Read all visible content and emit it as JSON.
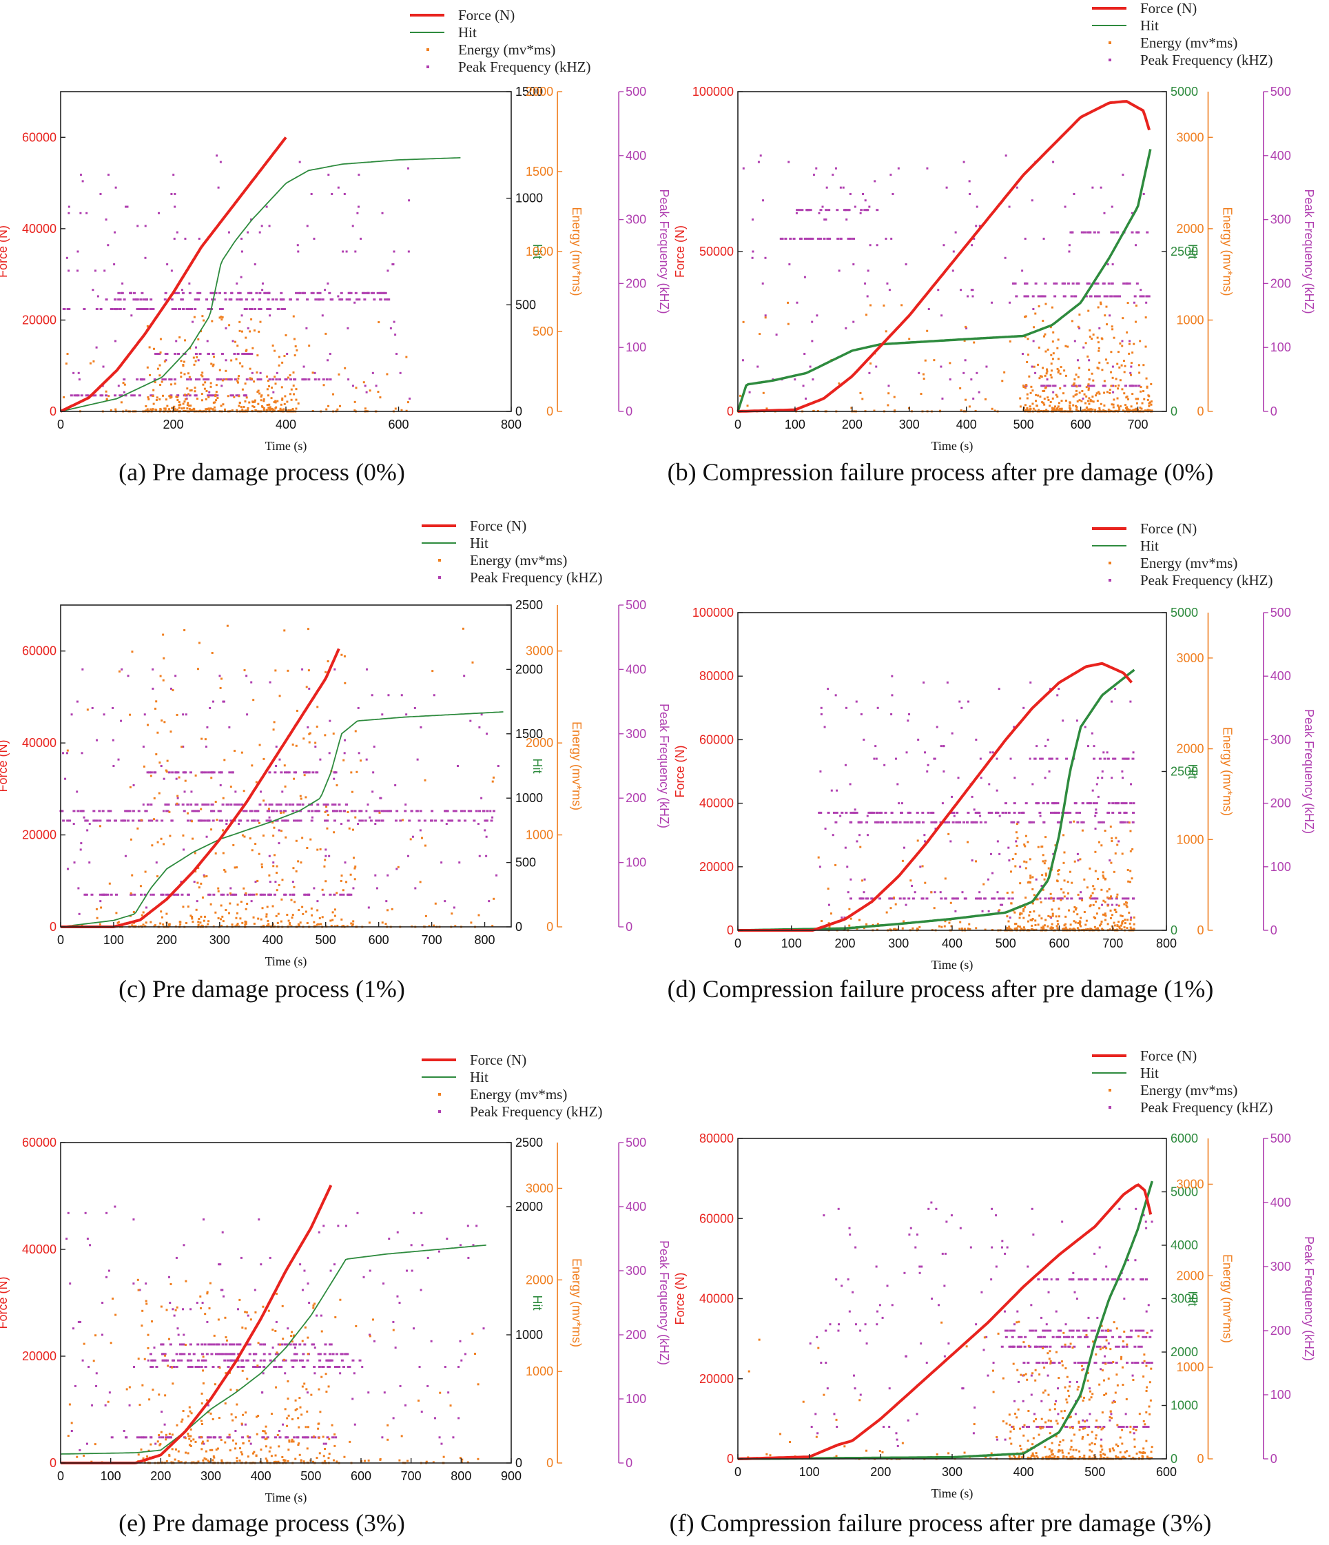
{
  "colors": {
    "force": "#e8231e",
    "hit": "#2e8b3e",
    "energy": "#f07f20",
    "peak": "#b03fb0",
    "axis": "#222222"
  },
  "legend": {
    "force": "Force (N)",
    "hit": "Hit",
    "energy": "Energy (mv*ms)",
    "peak": "Peak Frequency (kHZ)"
  },
  "axis_labels": {
    "time": "Time (s)",
    "force": "Force (N)",
    "hit": "Hit",
    "energy": "Energy (mv*ms)",
    "peak": "Peak Frequency (kHZ)"
  },
  "chart_data": [
    {
      "id": "a",
      "type": "line",
      "caption": "(a) Pre damage process (0%)",
      "xlim": [
        0,
        800
      ],
      "x_ticks": [
        0,
        200,
        400,
        600,
        800
      ],
      "force_lim": [
        0,
        70000
      ],
      "force_ticks": [
        0,
        20000,
        40000,
        60000
      ],
      "hit_lim": [
        0,
        1500
      ],
      "hit_ticks": [
        0,
        500,
        1000,
        1500
      ],
      "energy_lim": [
        0,
        2000
      ],
      "energy_ticks": [
        0,
        500,
        1000,
        1500,
        2000
      ],
      "peak_lim": [
        0,
        500
      ],
      "peak_ticks": [
        0,
        100,
        200,
        300,
        400,
        500
      ],
      "force_series": [
        [
          0,
          0
        ],
        [
          50,
          3000
        ],
        [
          100,
          9000
        ],
        [
          150,
          17000
        ],
        [
          200,
          26000
        ],
        [
          250,
          36000
        ],
        [
          300,
          44000
        ],
        [
          350,
          52000
        ],
        [
          400,
          60000
        ]
      ],
      "hit_series": [
        [
          0,
          0
        ],
        [
          100,
          60
        ],
        [
          180,
          160
        ],
        [
          230,
          300
        ],
        [
          265,
          450
        ],
        [
          285,
          700
        ],
        [
          310,
          800
        ],
        [
          340,
          900
        ],
        [
          400,
          1070
        ],
        [
          440,
          1130
        ],
        [
          500,
          1160
        ],
        [
          600,
          1180
        ],
        [
          710,
          1190
        ]
      ],
      "hit_thick": false,
      "energy_scatter": {
        "x_range": [
          0,
          620
        ],
        "dense_range": [
          150,
          420
        ],
        "max": 600,
        "count": 420
      },
      "peak_bands": [
        {
          "level": 25,
          "x_range": [
            0,
            330
          ]
        },
        {
          "level": 50,
          "x_range": [
            100,
            480
          ]
        },
        {
          "level": 90,
          "x_range": [
            150,
            340
          ]
        },
        {
          "level": 160,
          "x_range": [
            0,
            400
          ]
        },
        {
          "level": 175,
          "x_range": [
            80,
            600
          ]
        },
        {
          "level": 185,
          "x_range": [
            100,
            600
          ]
        }
      ],
      "peak_sparse": {
        "x_range": [
          0,
          620
        ],
        "count": 140
      }
    },
    {
      "id": "b",
      "type": "line",
      "caption": "(b) Compression failure process after pre damage (0%)",
      "xlim": [
        0,
        750
      ],
      "x_ticks": [
        0,
        100,
        200,
        300,
        400,
        500,
        600,
        700
      ],
      "force_lim": [
        0,
        100000
      ],
      "force_ticks": [
        0,
        50000,
        100000
      ],
      "hit_lim": [
        0,
        5000
      ],
      "hit_ticks": [
        0,
        2500,
        5000
      ],
      "energy_lim": [
        0,
        3500
      ],
      "energy_ticks": [
        0,
        1000,
        2000,
        3000
      ],
      "peak_lim": [
        0,
        500
      ],
      "peak_ticks": [
        0,
        100,
        200,
        300,
        400,
        500
      ],
      "force_series": [
        [
          0,
          0
        ],
        [
          100,
          500
        ],
        [
          150,
          4000
        ],
        [
          200,
          11000
        ],
        [
          300,
          30000
        ],
        [
          400,
          52000
        ],
        [
          500,
          74000
        ],
        [
          600,
          92000
        ],
        [
          650,
          96500
        ],
        [
          680,
          97000
        ],
        [
          710,
          94000
        ],
        [
          720,
          88000
        ]
      ],
      "hit_series": [
        [
          0,
          0
        ],
        [
          15,
          420
        ],
        [
          60,
          480
        ],
        [
          120,
          600
        ],
        [
          200,
          950
        ],
        [
          250,
          1050
        ],
        [
          400,
          1130
        ],
        [
          500,
          1180
        ],
        [
          550,
          1350
        ],
        [
          600,
          1700
        ],
        [
          650,
          2400
        ],
        [
          700,
          3200
        ],
        [
          722,
          4100
        ]
      ],
      "hit_thick": true,
      "energy_scatter": {
        "x_range": [
          0,
          725
        ],
        "dense_range": [
          500,
          725
        ],
        "max": 1200,
        "count": 480
      },
      "peak_bands": [
        {
          "level": 40,
          "x_range": [
            500,
            720
          ]
        },
        {
          "level": 180,
          "x_range": [
            480,
            720
          ]
        },
        {
          "level": 200,
          "x_range": [
            480,
            720
          ]
        },
        {
          "level": 280,
          "x_range": [
            580,
            720
          ]
        },
        {
          "level": 270,
          "x_range": [
            60,
            220
          ]
        },
        {
          "level": 315,
          "x_range": [
            100,
            250
          ]
        }
      ],
      "peak_sparse": {
        "x_range": [
          0,
          725
        ],
        "count": 160
      }
    },
    {
      "id": "c",
      "type": "line",
      "caption": "(c) Pre damage process (1%)",
      "xlim": [
        0,
        850
      ],
      "x_ticks": [
        0,
        100,
        200,
        300,
        400,
        500,
        600,
        700,
        800
      ],
      "force_lim": [
        0,
        70000
      ],
      "force_ticks": [
        0,
        20000,
        40000,
        60000
      ],
      "hit_lim": [
        0,
        2500
      ],
      "hit_ticks": [
        0,
        500,
        1000,
        1500,
        2000,
        2500
      ],
      "energy_lim": [
        0,
        3500
      ],
      "energy_ticks": [
        0,
        1000,
        2000,
        3000
      ],
      "peak_lim": [
        0,
        500
      ],
      "peak_ticks": [
        0,
        100,
        200,
        300,
        400,
        500
      ],
      "force_series": [
        [
          0,
          0
        ],
        [
          100,
          0
        ],
        [
          150,
          1500
        ],
        [
          200,
          6000
        ],
        [
          250,
          12000
        ],
        [
          300,
          19000
        ],
        [
          350,
          27000
        ],
        [
          400,
          36000
        ],
        [
          450,
          45000
        ],
        [
          500,
          54000
        ],
        [
          525,
          60500
        ]
      ],
      "hit_series": [
        [
          0,
          0
        ],
        [
          100,
          50
        ],
        [
          140,
          100
        ],
        [
          170,
          300
        ],
        [
          200,
          450
        ],
        [
          250,
          580
        ],
        [
          300,
          680
        ],
        [
          350,
          750
        ],
        [
          400,
          820
        ],
        [
          450,
          900
        ],
        [
          490,
          1000
        ],
        [
          510,
          1200
        ],
        [
          530,
          1500
        ],
        [
          560,
          1600
        ],
        [
          650,
          1630
        ],
        [
          835,
          1670
        ]
      ],
      "hit_thick": false,
      "energy_scatter": {
        "x_range": [
          0,
          830
        ],
        "dense_range": [
          130,
          560
        ],
        "max": 3300,
        "count": 460
      },
      "peak_bands": [
        {
          "level": 50,
          "x_range": [
            40,
            560
          ]
        },
        {
          "level": 165,
          "x_range": [
            0,
            820
          ]
        },
        {
          "level": 180,
          "x_range": [
            0,
            820
          ]
        },
        {
          "level": 190,
          "x_range": [
            150,
            560
          ]
        },
        {
          "level": 240,
          "x_range": [
            160,
            520
          ]
        }
      ],
      "peak_sparse": {
        "x_range": [
          0,
          830
        ],
        "count": 180
      }
    },
    {
      "id": "d",
      "type": "line",
      "caption": "(d) Compression failure process after pre damage (1%)",
      "xlim": [
        0,
        800
      ],
      "x_ticks": [
        0,
        100,
        200,
        300,
        400,
        500,
        600,
        700,
        800
      ],
      "force_lim": [
        0,
        100000
      ],
      "force_ticks": [
        0,
        20000,
        40000,
        60000,
        80000,
        100000
      ],
      "hit_lim": [
        0,
        5000
      ],
      "hit_ticks": [
        0,
        2500,
        5000
      ],
      "energy_lim": [
        0,
        3500
      ],
      "energy_ticks": [
        0,
        1000,
        2000,
        3000
      ],
      "peak_lim": [
        0,
        500
      ],
      "peak_ticks": [
        0,
        100,
        200,
        300,
        400,
        500
      ],
      "force_series": [
        [
          0,
          0
        ],
        [
          140,
          0
        ],
        [
          200,
          3500
        ],
        [
          250,
          9000
        ],
        [
          300,
          17000
        ],
        [
          350,
          27000
        ],
        [
          400,
          38000
        ],
        [
          450,
          49000
        ],
        [
          500,
          60000
        ],
        [
          550,
          70000
        ],
        [
          600,
          78000
        ],
        [
          650,
          83000
        ],
        [
          680,
          84000
        ],
        [
          720,
          81000
        ],
        [
          735,
          78000
        ]
      ],
      "hit_series": [
        [
          0,
          0
        ],
        [
          200,
          30
        ],
        [
          300,
          100
        ],
        [
          400,
          180
        ],
        [
          500,
          280
        ],
        [
          550,
          450
        ],
        [
          580,
          800
        ],
        [
          600,
          1500
        ],
        [
          620,
          2500
        ],
        [
          640,
          3200
        ],
        [
          680,
          3700
        ],
        [
          740,
          4100
        ]
      ],
      "hit_thick": true,
      "energy_scatter": {
        "x_range": [
          150,
          740
        ],
        "dense_range": [
          500,
          740
        ],
        "max": 1200,
        "count": 460
      },
      "peak_bands": [
        {
          "level": 50,
          "x_range": [
            200,
            740
          ]
        },
        {
          "level": 170,
          "x_range": [
            180,
            740
          ]
        },
        {
          "level": 185,
          "x_range": [
            150,
            740
          ]
        },
        {
          "level": 200,
          "x_range": [
            500,
            740
          ]
        },
        {
          "level": 270,
          "x_range": [
            550,
            740
          ]
        }
      ],
      "peak_sparse": {
        "x_range": [
          150,
          740
        ],
        "count": 180
      }
    },
    {
      "id": "e",
      "type": "line",
      "caption": "(e) Pre damage process (3%)",
      "xlim": [
        0,
        900
      ],
      "x_ticks": [
        0,
        100,
        200,
        300,
        400,
        500,
        600,
        700,
        800,
        900
      ],
      "force_lim": [
        0,
        60000
      ],
      "force_ticks": [
        0,
        20000,
        40000,
        60000
      ],
      "hit_lim": [
        0,
        2500
      ],
      "hit_ticks": [
        0,
        1000,
        2000,
        2500
      ],
      "energy_lim": [
        0,
        3500
      ],
      "energy_ticks": [
        0,
        1000,
        2000,
        3000
      ],
      "peak_lim": [
        0,
        500
      ],
      "peak_ticks": [
        0,
        100,
        200,
        300,
        400,
        500
      ],
      "force_series": [
        [
          0,
          0
        ],
        [
          150,
          0
        ],
        [
          200,
          1500
        ],
        [
          250,
          6000
        ],
        [
          300,
          12000
        ],
        [
          350,
          19000
        ],
        [
          400,
          27000
        ],
        [
          450,
          36000
        ],
        [
          500,
          44000
        ],
        [
          540,
          52000
        ]
      ],
      "hit_series": [
        [
          0,
          70
        ],
        [
          150,
          80
        ],
        [
          200,
          100
        ],
        [
          250,
          250
        ],
        [
          300,
          420
        ],
        [
          350,
          550
        ],
        [
          400,
          700
        ],
        [
          450,
          900
        ],
        [
          500,
          1150
        ],
        [
          540,
          1400
        ],
        [
          570,
          1590
        ],
        [
          650,
          1630
        ],
        [
          850,
          1700
        ]
      ],
      "hit_thick": false,
      "energy_scatter": {
        "x_range": [
          0,
          850
        ],
        "dense_range": [
          150,
          550
        ],
        "max": 2000,
        "count": 420
      },
      "peak_bands": [
        {
          "level": 40,
          "x_range": [
            100,
            560
          ]
        },
        {
          "level": 150,
          "x_range": [
            180,
            580
          ]
        },
        {
          "level": 160,
          "x_range": [
            150,
            600
          ]
        },
        {
          "level": 170,
          "x_range": [
            180,
            580
          ]
        },
        {
          "level": 185,
          "x_range": [
            200,
            560
          ]
        }
      ],
      "peak_sparse": {
        "x_range": [
          0,
          850
        ],
        "count": 160
      }
    },
    {
      "id": "f",
      "type": "line",
      "caption": "(f) Compression failure process after pre damage (3%)",
      "xlim": [
        0,
        600
      ],
      "x_ticks": [
        0,
        100,
        200,
        300,
        400,
        500,
        600
      ],
      "force_lim": [
        0,
        80000
      ],
      "force_ticks": [
        0,
        20000,
        40000,
        60000,
        80000
      ],
      "hit_lim": [
        0,
        6000
      ],
      "hit_ticks": [
        0,
        1000,
        2000,
        3000,
        4000,
        5000,
        6000
      ],
      "energy_lim": [
        0,
        3500
      ],
      "energy_ticks": [
        0,
        1000,
        2000,
        3000
      ],
      "peak_lim": [
        0,
        500
      ],
      "peak_ticks": [
        0,
        100,
        200,
        300,
        400,
        500
      ],
      "force_series": [
        [
          0,
          0
        ],
        [
          100,
          500
        ],
        [
          140,
          3500
        ],
        [
          160,
          4500
        ],
        [
          200,
          10000
        ],
        [
          250,
          18000
        ],
        [
          300,
          26000
        ],
        [
          350,
          34000
        ],
        [
          400,
          43000
        ],
        [
          450,
          51000
        ],
        [
          500,
          58000
        ],
        [
          540,
          66000
        ],
        [
          560,
          68500
        ],
        [
          570,
          67000
        ],
        [
          578,
          61000
        ]
      ],
      "hit_series": [
        [
          0,
          0
        ],
        [
          300,
          30
        ],
        [
          400,
          100
        ],
        [
          450,
          500
        ],
        [
          480,
          1200
        ],
        [
          500,
          2200
        ],
        [
          520,
          3000
        ],
        [
          540,
          3600
        ],
        [
          560,
          4300
        ],
        [
          580,
          5200
        ]
      ],
      "hit_thick": true,
      "energy_scatter": {
        "x_range": [
          0,
          580
        ],
        "dense_range": [
          380,
          580
        ],
        "max": 1500,
        "count": 460
      },
      "peak_bands": [
        {
          "level": 50,
          "x_range": [
            380,
            580
          ]
        },
        {
          "level": 150,
          "x_range": [
            400,
            580
          ]
        },
        {
          "level": 175,
          "x_range": [
            370,
            580
          ]
        },
        {
          "level": 190,
          "x_range": [
            370,
            580
          ]
        },
        {
          "level": 200,
          "x_range": [
            350,
            580
          ]
        },
        {
          "level": 280,
          "x_range": [
            420,
            580
          ]
        }
      ],
      "peak_sparse": {
        "x_range": [
          100,
          580
        ],
        "count": 170
      }
    }
  ]
}
